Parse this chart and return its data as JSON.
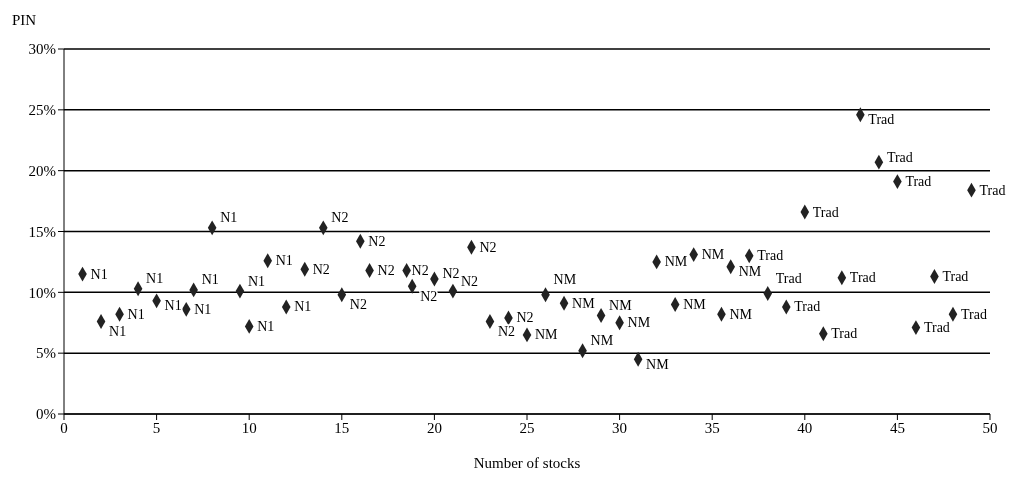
{
  "chart_data": {
    "type": "scatter",
    "ylabel": "PIN",
    "xlabel": "Number of stocks",
    "xlim": [
      0,
      50
    ],
    "xticks": [
      0,
      5,
      10,
      15,
      20,
      25,
      30,
      35,
      40,
      45,
      50
    ],
    "ylim": [
      0,
      30
    ],
    "yticks": [
      {
        "value": 0,
        "label": "0%"
      },
      {
        "value": 5,
        "label": "5%"
      },
      {
        "value": 10,
        "label": "10%"
      },
      {
        "value": 15,
        "label": "15%"
      },
      {
        "value": 20,
        "label": "20%"
      },
      {
        "value": 25,
        "label": "25%"
      },
      {
        "value": 30,
        "label": "30%"
      }
    ],
    "grid": "y",
    "legend": false,
    "marker": "diamond",
    "series": [
      {
        "name": "N1",
        "color": "#222222",
        "x": [
          1,
          2,
          3,
          4,
          5,
          6.6,
          7,
          8,
          9.5,
          10,
          11,
          12
        ],
        "values": [
          11.5,
          7.6,
          8.2,
          10.3,
          9.3,
          8.6,
          10.2,
          15.3,
          10.1,
          7.2,
          12.6,
          8.8
        ]
      },
      {
        "name": "N2",
        "color": "#222222",
        "x": [
          13,
          14,
          15,
          16,
          16.5,
          18.5,
          18.8,
          20,
          21,
          22,
          23,
          24
        ],
        "values": [
          11.9,
          15.3,
          9.8,
          14.2,
          11.8,
          11.8,
          10.5,
          11.1,
          10.1,
          13.7,
          7.6,
          7.9
        ]
      },
      {
        "name": "NM",
        "color": "#222222",
        "x": [
          25,
          26,
          27,
          28,
          29,
          30,
          31,
          32,
          33,
          34,
          35.5,
          36
        ],
        "values": [
          6.5,
          9.8,
          9.1,
          5.2,
          8.1,
          7.5,
          4.5,
          12.5,
          9.0,
          13.1,
          8.2,
          12.1
        ]
      },
      {
        "name": "Trad",
        "color": "#222222",
        "x": [
          37,
          38,
          39,
          40,
          41,
          42,
          43,
          44,
          45,
          46,
          47,
          48,
          49
        ],
        "values": [
          13.0,
          9.9,
          8.8,
          16.6,
          6.6,
          11.2,
          24.6,
          20.7,
          19.1,
          7.1,
          11.3,
          8.2,
          18.4
        ]
      }
    ]
  }
}
